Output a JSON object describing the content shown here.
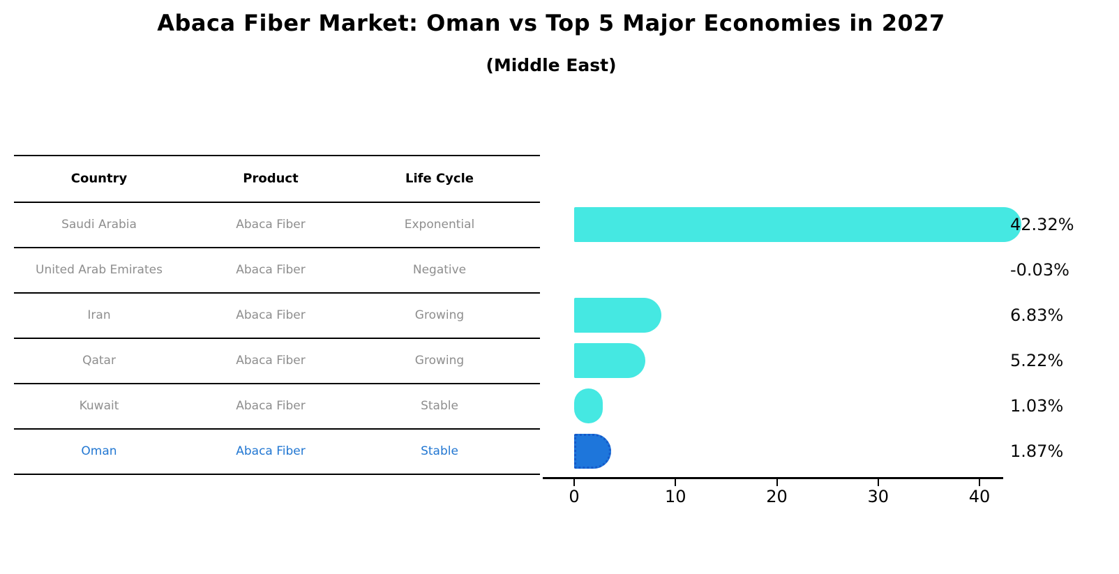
{
  "title": "Abaca Fiber Market: Oman vs Top 5 Major Economies in 2027",
  "subtitle": "(Middle East)",
  "table": {
    "headers": [
      "Country",
      "Product",
      "Life Cycle"
    ],
    "rows": [
      {
        "country": "Saudi Arabia",
        "product": "Abaca Fiber",
        "life_cycle": "Exponential",
        "highlight": false
      },
      {
        "country": "United Arab Emirates",
        "product": "Abaca Fiber",
        "life_cycle": "Negative",
        "highlight": false
      },
      {
        "country": "Iran",
        "product": "Abaca Fiber",
        "life_cycle": "Growing",
        "highlight": false
      },
      {
        "country": "Qatar",
        "product": "Abaca Fiber",
        "life_cycle": "Growing",
        "highlight": false
      },
      {
        "country": "Kuwait",
        "product": "Abaca Fiber",
        "life_cycle": "Stable",
        "highlight": false
      },
      {
        "country": "Oman",
        "product": "Abaca Fiber",
        "life_cycle": "Stable",
        "highlight": true
      }
    ]
  },
  "chart_data": {
    "type": "bar",
    "orientation": "horizontal",
    "title": "Abaca Fiber Market: Oman vs Top 5 Major Economies in 2027 (Middle East)",
    "categories": [
      "Saudi Arabia",
      "United Arab Emirates",
      "Iran",
      "Qatar",
      "Kuwait",
      "Oman"
    ],
    "values": [
      42.32,
      -0.03,
      6.83,
      5.22,
      1.03,
      1.87
    ],
    "value_labels": [
      "42.32%",
      "-0.03%",
      "6.83%",
      "5.22%",
      "1.03%",
      "1.87%"
    ],
    "xticks": [
      0,
      10,
      20,
      30,
      40
    ],
    "xlim": [
      0,
      45
    ],
    "grid": false,
    "legend": false,
    "highlight_index": 5
  },
  "colors": {
    "bar_cyan": "#45E8E2",
    "bar_blue": "#1E76DB",
    "bar_blue_border": "#1559C9",
    "table_text_gray": "#8E8E8E",
    "highlight_text_blue": "#2277D2",
    "axis_black": "#000000"
  }
}
